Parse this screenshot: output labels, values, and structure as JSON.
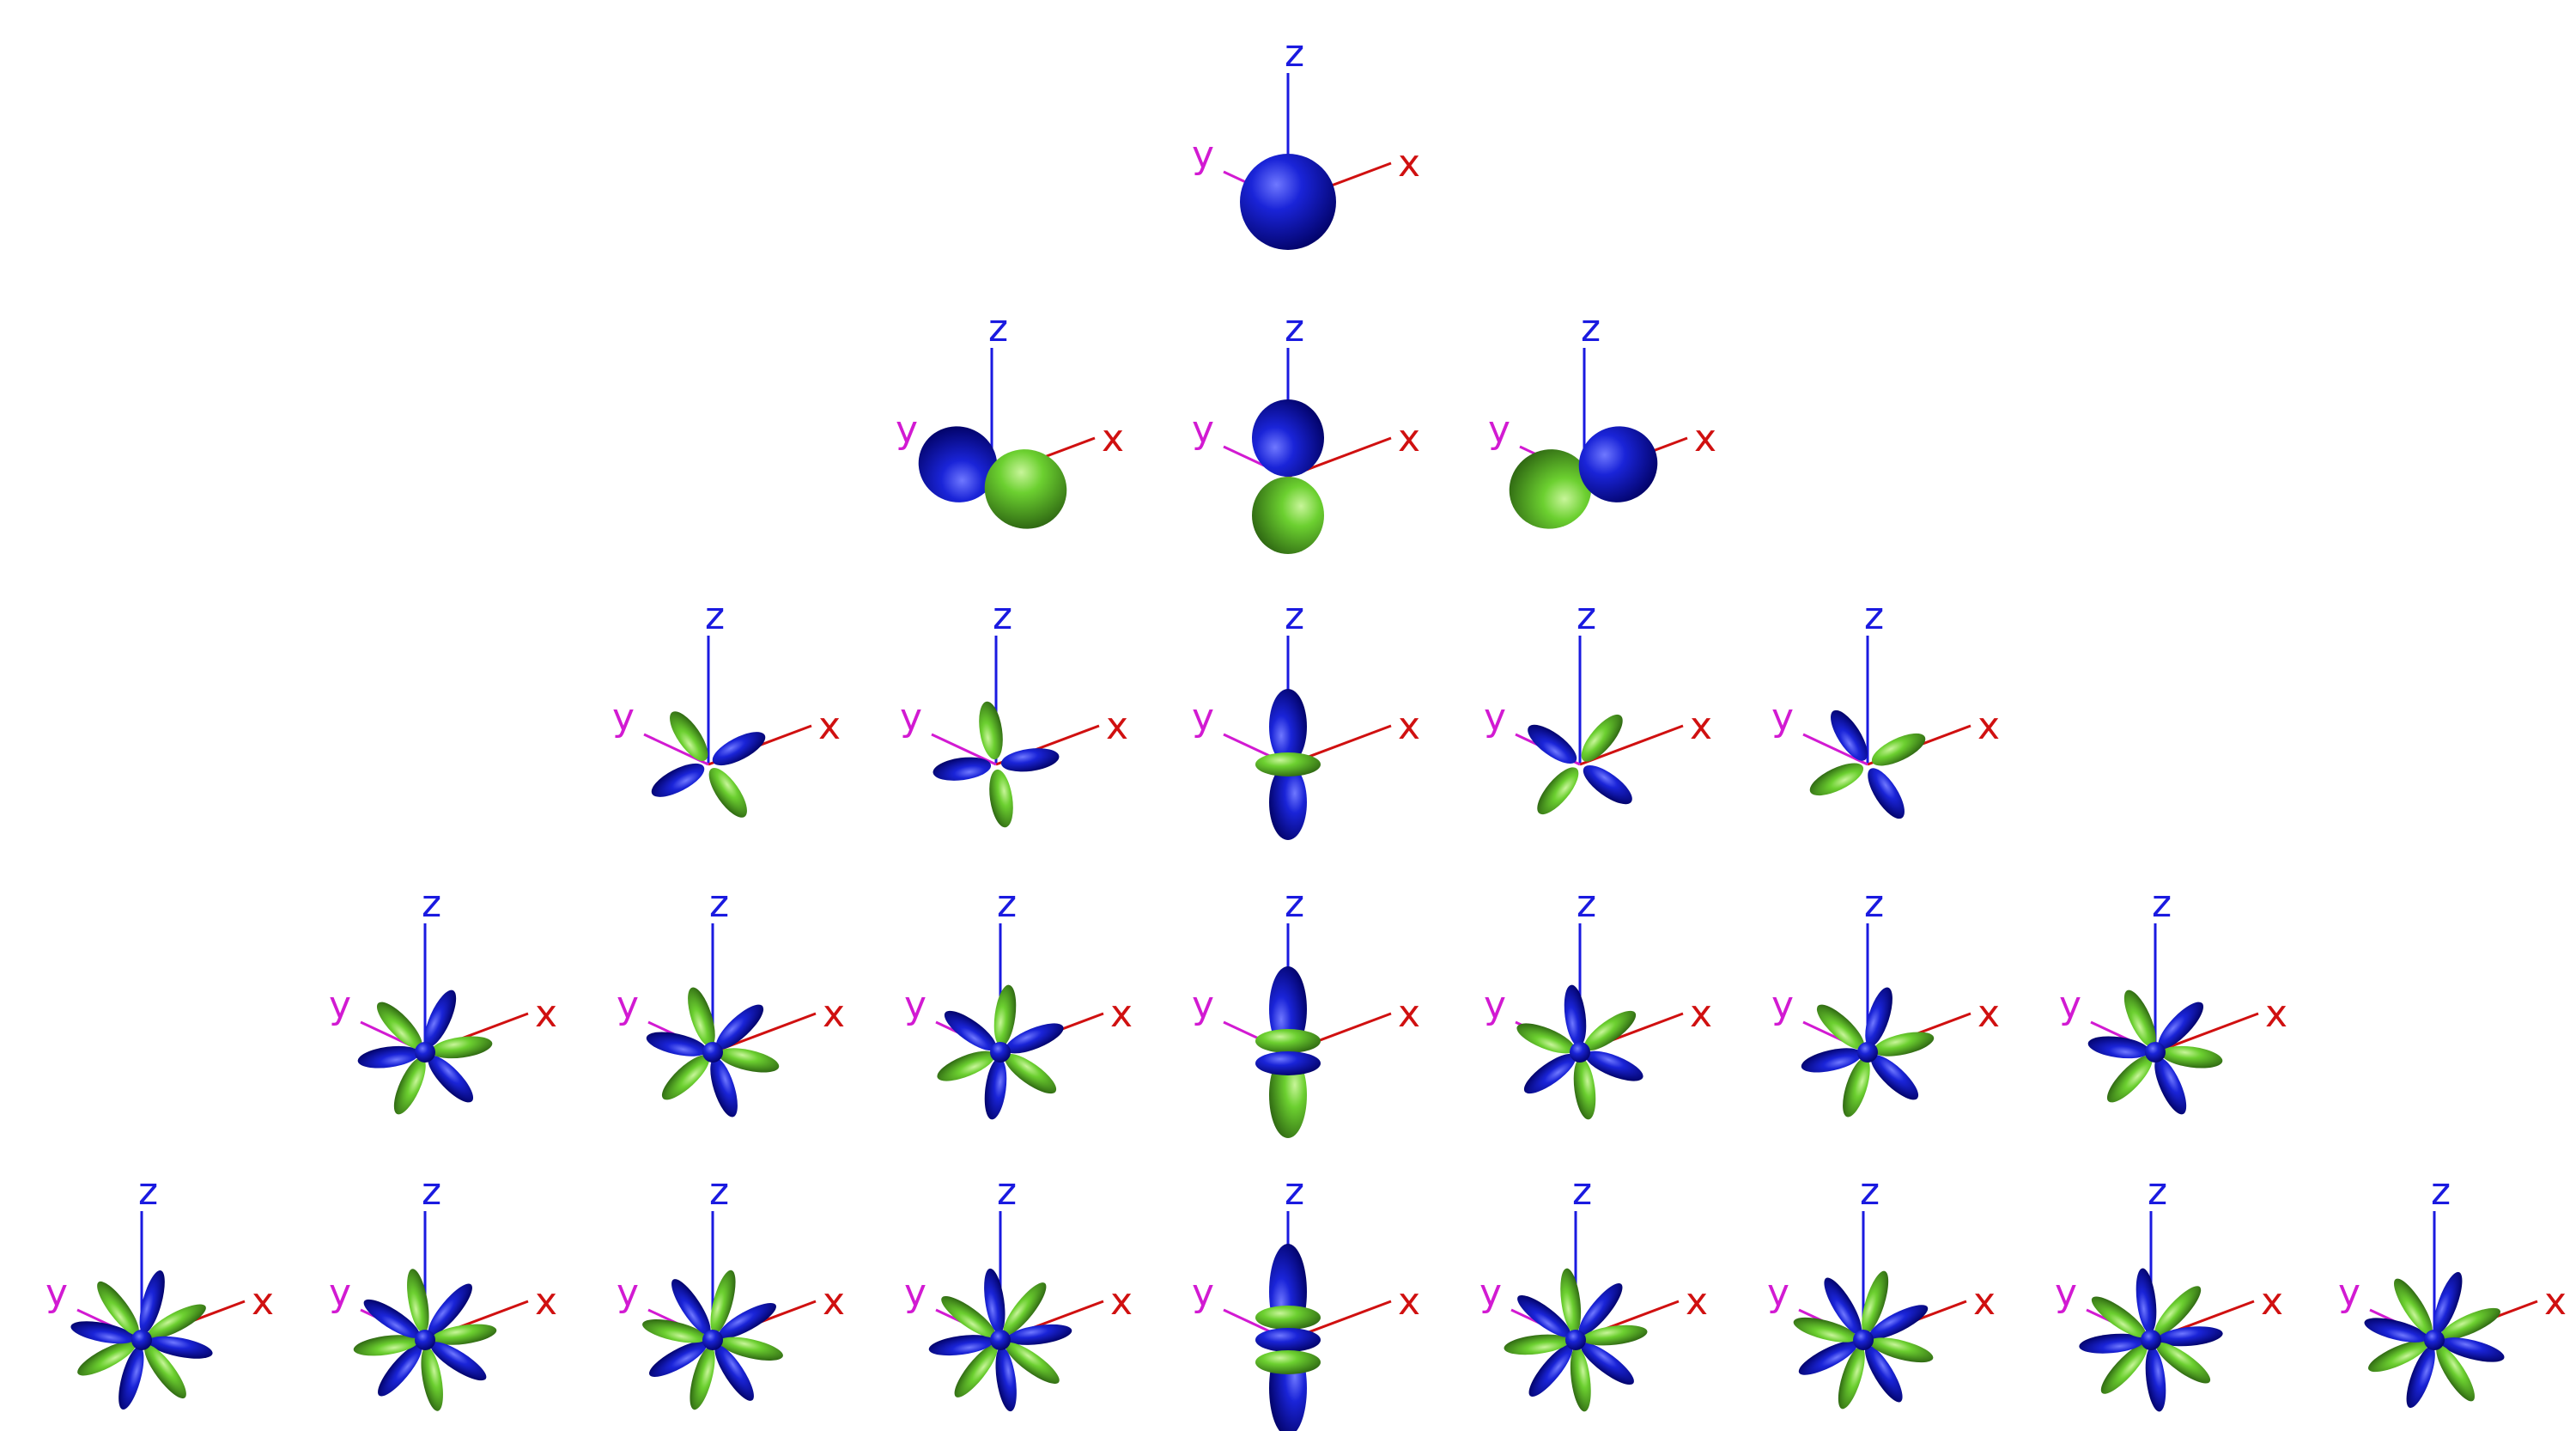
{
  "colors": {
    "positive_lobe": "#0a12b4",
    "negative_lobe": "#5cc22e",
    "x_axis": "#d01010",
    "y_axis": "#d21ad2",
    "z_axis": "#1a1ae0",
    "background": "#ffffff"
  },
  "axis_labels": {
    "x": "x",
    "y": "y",
    "z": "z"
  },
  "rows": [
    {
      "l": 0,
      "orbitals": [
        {
          "m": 0,
          "kind": "s"
        }
      ]
    },
    {
      "l": 1,
      "orbitals": [
        {
          "m": -1,
          "kind": "p-x-tilt"
        },
        {
          "m": 0,
          "kind": "pz"
        },
        {
          "m": 1,
          "kind": "p-y-tilt"
        }
      ]
    },
    {
      "l": 2,
      "orbitals": [
        {
          "m": -2,
          "kind": "d"
        },
        {
          "m": -1,
          "kind": "d"
        },
        {
          "m": 0,
          "kind": "dz2"
        },
        {
          "m": 1,
          "kind": "d"
        },
        {
          "m": 2,
          "kind": "d"
        }
      ]
    },
    {
      "l": 3,
      "orbitals": [
        {
          "m": -3,
          "kind": "f"
        },
        {
          "m": -2,
          "kind": "f"
        },
        {
          "m": -1,
          "kind": "f"
        },
        {
          "m": 0,
          "kind": "fz3"
        },
        {
          "m": 1,
          "kind": "f"
        },
        {
          "m": 2,
          "kind": "f"
        },
        {
          "m": 3,
          "kind": "f"
        }
      ]
    },
    {
      "l": 4,
      "orbitals": [
        {
          "m": -4,
          "kind": "g"
        },
        {
          "m": -3,
          "kind": "g"
        },
        {
          "m": -2,
          "kind": "g"
        },
        {
          "m": -1,
          "kind": "g"
        },
        {
          "m": 0,
          "kind": "gz4"
        },
        {
          "m": 1,
          "kind": "g"
        },
        {
          "m": 2,
          "kind": "g"
        },
        {
          "m": 3,
          "kind": "g"
        },
        {
          "m": 4,
          "kind": "g"
        }
      ]
    }
  ]
}
